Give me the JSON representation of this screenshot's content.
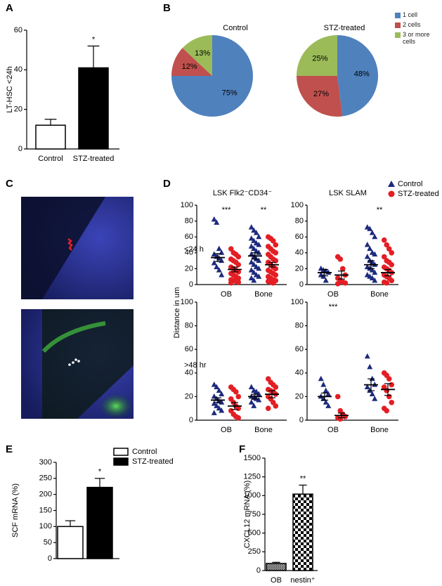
{
  "chart_data": [
    {
      "panel": "A",
      "type": "bar",
      "ylabel": "LT-HSC <24h",
      "categories": [
        "Control",
        "STZ-treated"
      ],
      "values": [
        12,
        41
      ],
      "errors": [
        3,
        11
      ],
      "colors": [
        "#ffffff",
        "#000000"
      ],
      "ylim": [
        0,
        60
      ],
      "yticks": [
        0,
        20,
        40,
        60
      ],
      "annotations": [
        null,
        "*"
      ]
    },
    {
      "panel": "B",
      "type": "pie",
      "series": [
        {
          "name": "1 cell",
          "color": "#4f81bd"
        },
        {
          "name": "2 cells",
          "color": "#c0504d"
        },
        {
          "name": "3 or more cells",
          "color": "#9bbb59"
        }
      ],
      "pies": [
        {
          "title": "Control",
          "values": [
            75,
            12,
            13
          ],
          "value_labels": [
            "75%",
            "12%",
            "13%"
          ]
        },
        {
          "title": "STZ-treated",
          "values": [
            48,
            27,
            25
          ],
          "value_labels": [
            "48%",
            "27%",
            "25%"
          ]
        }
      ]
    },
    {
      "panel": "C",
      "type": "image"
    },
    {
      "panel": "D",
      "type": "scatter",
      "ylabel": "Distance in um",
      "columns": [
        "LSK Flk2⁻CD34⁻",
        "LSK SLAM"
      ],
      "categories": [
        "OB",
        "Bone"
      ],
      "ylim": [
        0,
        100
      ],
      "yticks": [
        0,
        20,
        40,
        60,
        80,
        100
      ],
      "series": [
        {
          "name": "Control",
          "color": "#1d2a7d",
          "marker": "triangle"
        },
        {
          "name": "STZ-treated",
          "color": "#e31e24",
          "marker": "circle"
        }
      ],
      "rows": [
        {
          "label": "<24 h",
          "panels": [
            {
              "points": [
                [
                  [
                    82,
                    78,
                    45,
                    40,
                    38,
                    35,
                    33,
                    30,
                    27,
                    22,
                    18,
                    12
                  ],
                  [
                    72,
                    68,
                    65,
                    60,
                    58,
                    55,
                    52,
                    50,
                    48,
                    45,
                    42,
                    40,
                    38,
                    35,
                    32,
                    30,
                    28,
                    25,
                    22,
                    20,
                    18,
                    15,
                    12,
                    10,
                    8,
                    5
                  ]
                ],
                [
                  [
                    45,
                    40,
                    38,
                    35,
                    32,
                    30,
                    28,
                    25,
                    22,
                    20,
                    18,
                    16,
                    14,
                    12,
                    10,
                    8,
                    6,
                    5,
                    4,
                    3,
                    2
                  ],
                  [
                    60,
                    58,
                    55,
                    50,
                    48,
                    45,
                    42,
                    40,
                    38,
                    35,
                    32,
                    30,
                    28,
                    25,
                    22,
                    20,
                    18,
                    16,
                    14,
                    12,
                    10,
                    8,
                    6,
                    5,
                    4,
                    3,
                    2
                  ]
                ]
              ],
              "mean": [
                [
                  34,
                  36
                ],
                [
                  19,
                  25
                ]
              ],
              "sem": [
                [
                  5,
                  4
                ],
                [
                  3,
                  3
                ]
              ],
              "annotations": [
                "***",
                "**"
              ]
            },
            {
              "points": [
                [
                  [
                    20,
                    18,
                    17,
                    15,
                    12,
                    10,
                    5
                  ],
                  [
                    72,
                    70,
                    65,
                    60,
                    50,
                    45,
                    40,
                    38,
                    35,
                    30,
                    28,
                    25,
                    22,
                    20,
                    18,
                    15,
                    12,
                    10,
                    8,
                    5
                  ]
                ],
                [
                  [
                    35,
                    32,
                    20,
                    12,
                    8,
                    5,
                    3,
                    2,
                    1
                  ],
                  [
                    56,
                    50,
                    45,
                    40,
                    35,
                    30,
                    28,
                    25,
                    22,
                    20,
                    18,
                    15,
                    12,
                    10,
                    8,
                    5,
                    3,
                    2
                  ]
                ]
              ],
              "mean": [
                [
                  15,
                  25
                ],
                [
                  12,
                  15
                ]
              ],
              "sem": [
                [
                  4,
                  5
                ],
                [
                  5,
                  4
                ]
              ],
              "annotations": [
                null,
                "**"
              ]
            }
          ]
        },
        {
          "label": ">48 hr",
          "panels": [
            {
              "points": [
                [
                  [
                    30,
                    28,
                    25,
                    22,
                    20,
                    18,
                    16,
                    15,
                    14,
                    12,
                    10,
                    8,
                    6
                  ],
                  [
                    28,
                    25,
                    24,
                    22,
                    20,
                    19,
                    18,
                    17,
                    15,
                    12
                  ]
                ],
                [
                  [
                    28,
                    26,
                    24,
                    20,
                    18,
                    15,
                    12,
                    10,
                    8,
                    5,
                    3,
                    2
                  ],
                  [
                    35,
                    32,
                    30,
                    28,
                    26,
                    25,
                    24,
                    22,
                    20,
                    18,
                    15,
                    12,
                    10
                  ]
                ]
              ],
              "mean": [
                [
                  17,
                  20
                ],
                [
                  12,
                  22
                ]
              ],
              "sem": [
                [
                  2,
                  2
                ],
                [
                  3,
                  3
                ]
              ],
              "annotations": [
                null,
                null
              ]
            },
            {
              "points": [
                [
                  [
                    35,
                    30,
                    25,
                    22,
                    20,
                    18,
                    15,
                    12
                  ],
                  [
                    54,
                    45,
                    35,
                    30,
                    28,
                    25,
                    22,
                    18
                  ]
                ],
                [
                  [
                    20,
                    8,
                    5,
                    3,
                    2,
                    1
                  ],
                  [
                    40,
                    38,
                    35,
                    30,
                    28,
                    25,
                    20,
                    15,
                    10,
                    8
                  ]
                ]
              ],
              "mean": [
                [
                  20,
                  30
                ],
                [
                  4,
                  26
                ]
              ],
              "sem": [
                [
                  3,
                  5
                ],
                [
                  2,
                  5
                ]
              ],
              "annotations": [
                "***",
                null
              ]
            }
          ]
        }
      ]
    },
    {
      "panel": "E",
      "type": "bar",
      "ylabel": "SCF mRNA (%)",
      "categories": [
        "Control",
        "STZ-treated"
      ],
      "values": [
        100,
        222
      ],
      "errors": [
        18,
        28
      ],
      "colors": [
        "#ffffff",
        "#000000"
      ],
      "ylim": [
        0,
        300
      ],
      "yticks": [
        0,
        50,
        100,
        150,
        200,
        250,
        300
      ],
      "annotations": [
        null,
        "*"
      ],
      "legend": true,
      "x_labels": false
    },
    {
      "panel": "F",
      "type": "bar",
      "ylabel": "CXCL12 mRNA (%)",
      "categories": [
        "OB",
        "nestin⁺"
      ],
      "values": [
        95,
        1020
      ],
      "errors": [
        15,
        120
      ],
      "pattern": [
        "crosshatch",
        "checker"
      ],
      "ylim": [
        0,
        1500
      ],
      "yticks": [
        0,
        250,
        500,
        750,
        1000,
        1250,
        1500
      ],
      "annotations": [
        null,
        "**"
      ]
    }
  ]
}
